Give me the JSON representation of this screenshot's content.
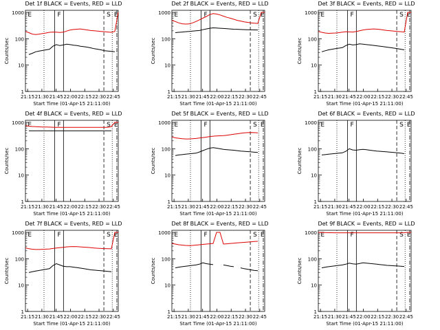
{
  "figure": {
    "time_ticks": [
      "21:15",
      "21:30",
      "21:45",
      "22:00",
      "22:15",
      "22:30",
      "22:45"
    ],
    "y_ticks": [
      "1",
      "10",
      "100",
      "1000"
    ],
    "ylabel": "Counts/sec",
    "xlabel": "Start Time (01-Apr-15 21:11:00)",
    "marker_labels": [
      "E",
      "F",
      "S",
      "E"
    ],
    "event_color": "#000000",
    "lld_color": "#dd0000"
  },
  "chart_data": [
    {
      "type": "line",
      "title": "Det 1f BLACK = Events, RED = LLD",
      "ylim": [
        1,
        1200
      ],
      "yscale": "log",
      "series": [
        {
          "color": "#000000",
          "values": [
            null,
            25,
            28,
            32,
            34,
            36,
            38,
            40,
            52,
            60,
            55,
            58,
            62,
            60,
            57,
            55,
            52,
            50,
            48,
            45,
            42,
            40,
            38,
            35,
            34,
            33,
            32,
            null
          ]
        },
        {
          "color": "#dd0000",
          "values": [
            190,
            170,
            150,
            145,
            150,
            158,
            165,
            175,
            180,
            178,
            172,
            178,
            195,
            215,
            225,
            230,
            235,
            225,
            215,
            205,
            200,
            195,
            190,
            185,
            180,
            175,
            190,
            1000
          ]
        }
      ]
    },
    {
      "type": "line",
      "title": "Det 2f BLACK = Events, RED = LLD",
      "ylim": [
        1,
        1200
      ],
      "yscale": "log",
      "series": [
        {
          "color": "#000000",
          "values": [
            null,
            170,
            175,
            180,
            185,
            190,
            195,
            200,
            205,
            220,
            235,
            250,
            260,
            255,
            250,
            245,
            240,
            235,
            230,
            228,
            225,
            222,
            220,
            218,
            216,
            215,
            null,
            null
          ]
        },
        {
          "color": "#dd0000",
          "values": [
            500,
            450,
            400,
            370,
            360,
            365,
            400,
            450,
            520,
            600,
            700,
            820,
            900,
            870,
            800,
            720,
            650,
            600,
            550,
            500,
            470,
            440,
            420,
            400,
            390,
            380,
            1000,
            1000
          ]
        }
      ]
    },
    {
      "type": "line",
      "title": "Det 3f BLACK = Events, RED = LLD",
      "ylim": [
        1,
        1200
      ],
      "yscale": "log",
      "series": [
        {
          "color": "#000000",
          "values": [
            null,
            32,
            35,
            38,
            40,
            42,
            44,
            46,
            55,
            62,
            58,
            60,
            64,
            62,
            60,
            58,
            56,
            54,
            52,
            50,
            48,
            46,
            44,
            42,
            40,
            38,
            null,
            null
          ]
        },
        {
          "color": "#dd0000",
          "values": [
            190,
            175,
            165,
            160,
            162,
            165,
            170,
            178,
            185,
            182,
            180,
            188,
            200,
            215,
            225,
            230,
            235,
            232,
            225,
            215,
            205,
            200,
            195,
            190,
            185,
            180,
            1000,
            1000
          ]
        }
      ]
    },
    {
      "type": "line",
      "title": "Det 4f BLACK = Events, RED = LLD",
      "ylim": [
        1,
        1200
      ],
      "yscale": "log",
      "series": [
        {
          "color": "#000000",
          "values": [
            null,
            480,
            480,
            480,
            480,
            480,
            480,
            480,
            480,
            480,
            480,
            480,
            480,
            480,
            480,
            480,
            480,
            480,
            480,
            480,
            480,
            480,
            480,
            480,
            480,
            480,
            null,
            null
          ]
        },
        {
          "color": "#dd0000",
          "values": [
            750,
            720,
            700,
            690,
            680,
            670,
            665,
            660,
            655,
            650,
            650,
            650,
            650,
            650,
            650,
            650,
            650,
            650,
            650,
            650,
            650,
            650,
            650,
            650,
            650,
            700,
            1000,
            1000
          ]
        }
      ]
    },
    {
      "type": "line",
      "title": "Det 5f BLACK = Events, RED = LLD",
      "ylim": [
        1,
        1200
      ],
      "yscale": "log",
      "series": [
        {
          "color": "#000000",
          "values": [
            null,
            55,
            58,
            60,
            62,
            64,
            66,
            68,
            75,
            85,
            95,
            105,
            110,
            105,
            100,
            95,
            92,
            90,
            88,
            85,
            82,
            80,
            78,
            76,
            74,
            72,
            null,
            null
          ]
        },
        {
          "color": "#dd0000",
          "values": [
            280,
            260,
            250,
            240,
            235,
            235,
            240,
            245,
            255,
            265,
            275,
            290,
            300,
            305,
            310,
            315,
            325,
            340,
            355,
            370,
            385,
            400,
            410,
            415,
            410,
            400,
            null,
            null
          ]
        }
      ]
    },
    {
      "type": "line",
      "title": "Det 6f BLACK = Events, RED = LLD",
      "ylim": [
        1,
        1200
      ],
      "yscale": "log",
      "series": [
        {
          "color": "#000000",
          "values": [
            null,
            58,
            60,
            62,
            64,
            66,
            68,
            70,
            80,
            100,
            90,
            88,
            92,
            95,
            92,
            88,
            85,
            82,
            80,
            78,
            76,
            74,
            72,
            70,
            68,
            65,
            null,
            null
          ]
        }
      ]
    },
    {
      "type": "line",
      "title": "Det 7f BLACK = Events, RED = LLD",
      "ylim": [
        1,
        1200
      ],
      "yscale": "log",
      "series": [
        {
          "color": "#000000",
          "values": [
            null,
            30,
            32,
            34,
            36,
            38,
            40,
            42,
            55,
            65,
            58,
            52,
            50,
            50,
            48,
            46,
            44,
            42,
            40,
            38,
            37,
            36,
            35,
            34,
            33,
            32,
            null,
            null
          ]
        },
        {
          "color": "#dd0000",
          "values": [
            260,
            240,
            230,
            225,
            225,
            228,
            232,
            236,
            245,
            255,
            262,
            272,
            282,
            288,
            290,
            288,
            282,
            276,
            270,
            262,
            256,
            250,
            246,
            242,
            240,
            238,
            1000,
            1000
          ]
        }
      ]
    },
    {
      "type": "line",
      "title": "Det 8f BLACK = Events, RED = LLD",
      "ylim": [
        1,
        1200
      ],
      "yscale": "log",
      "series": [
        {
          "color": "#000000",
          "values": [
            null,
            45,
            48,
            50,
            52,
            54,
            56,
            58,
            62,
            70,
            65,
            62,
            60,
            null,
            null,
            58,
            55,
            52,
            50,
            null,
            45,
            42,
            40,
            38,
            36,
            35,
            null,
            null
          ]
        },
        {
          "color": "#dd0000",
          "values": [
            380,
            360,
            340,
            330,
            320,
            315,
            320,
            330,
            340,
            350,
            360,
            370,
            380,
            1000,
            1000,
            360,
            370,
            380,
            390,
            400,
            410,
            420,
            430,
            440,
            450,
            460,
            null,
            null
          ]
        }
      ]
    },
    {
      "type": "line",
      "title": "Det 9f BLACK = Events, RED = LLD",
      "ylim": [
        1,
        1200
      ],
      "yscale": "log",
      "series": [
        {
          "color": "#000000",
          "values": [
            null,
            45,
            48,
            50,
            52,
            54,
            56,
            58,
            62,
            68,
            64,
            62,
            66,
            70,
            68,
            66,
            64,
            62,
            60,
            58,
            56,
            55,
            54,
            53,
            52,
            51,
            null,
            null
          ]
        },
        {
          "color": "#dd0000",
          "values": [
            1000,
            990,
            980,
            975,
            970,
            968,
            966,
            965,
            965,
            965,
            965,
            965,
            965,
            965,
            965,
            965,
            965,
            965,
            965,
            965,
            965,
            965,
            965,
            965,
            965,
            965,
            1000,
            1000
          ]
        }
      ]
    }
  ]
}
